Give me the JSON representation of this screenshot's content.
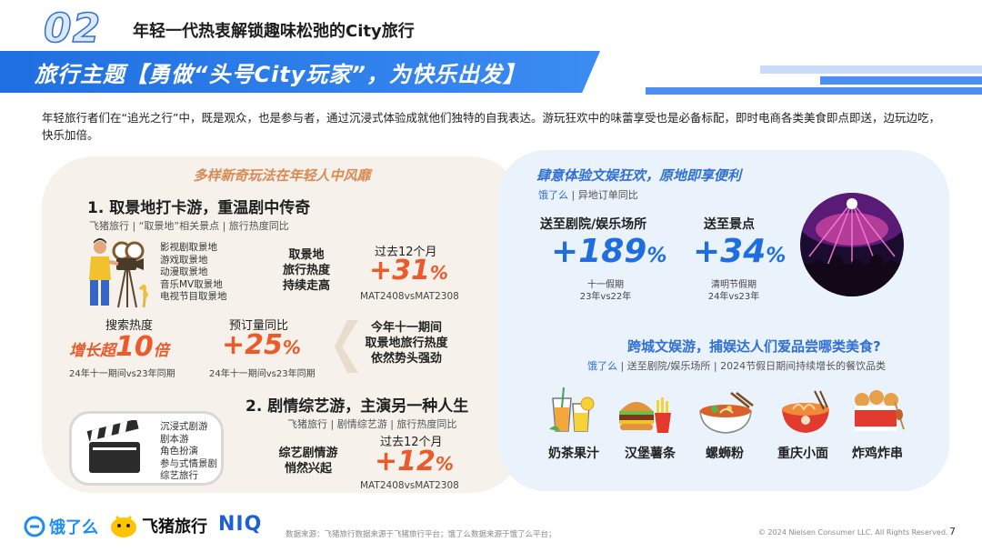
{
  "header": {
    "section_number": "02",
    "section_title": "年轻一代热衷解锁趣味松弛的City旅行",
    "banner": "旅行主题【勇做“头号City玩家”，为快乐出发】"
  },
  "intro": "年轻旅行者们在“追光之行”中，既是观众，也是参与者，通过沉浸式体验成就他们独特的自我表达。游玩狂欢中的味蕾享受也是必备标配，即时电商各类美食即点即送，边玩边吃，快乐加倍。",
  "left_panel": {
    "heading": "多样新奇玩法在年轻人中风靡",
    "s1": {
      "title": "1. 取景地打卡游，重温剧中传奇",
      "source": "飞猪旅行 | “取景地”相关景点 | 旅行热度同比",
      "categories": [
        "影视剧取景地",
        "游戏取景地",
        "动漫取景地",
        "音乐MV取景地",
        "电视节目取景地"
      ],
      "trend_label": [
        "取景地",
        "旅行热度",
        "持续走高"
      ],
      "period": "过去12个月",
      "value": "+31",
      "unit": "%",
      "compare": "MAT2408vsMAT2308",
      "search_label": "搜索热度",
      "search_prefix": "增长超",
      "search_value": "10",
      "search_suffix": "倍",
      "search_note": "24年十一期间vs23年同期",
      "booking_label": "预订量同比",
      "booking_value": "+25",
      "booking_unit": "%",
      "booking_note": "24年十一期间vs23年同期",
      "holiday_text": [
        "今年十一期间",
        "取景地旅行热度",
        "依然势头强劲"
      ]
    },
    "s2": {
      "title": "2. 剧情综艺游，主演另一种人生",
      "source": "飞猪旅行 | 剧情综艺游 | 旅行热度同比",
      "categories": [
        "沉浸式剧游",
        "剧本游",
        "角色扮演",
        "参与式情景剧",
        "综艺旅行"
      ],
      "trend_label": [
        "综艺剧情游",
        "悄然兴起"
      ],
      "period": "过去12个月",
      "value": "+12",
      "unit": "%",
      "compare": "MAT2408vsMAT2308"
    }
  },
  "right_panel": {
    "heading": "肆意体验文娱狂欢，原地即享便利",
    "source_brand": "饿了么",
    "source_rest": " | 异地订单同比",
    "stat1": {
      "label": "送至剧院/娱乐场所",
      "value": "+189",
      "unit": "%",
      "note1": "十一假期",
      "note2": "23年vs22年"
    },
    "stat2": {
      "label": "送至景点",
      "value": "+34",
      "unit": "%",
      "note1": "清明节假期",
      "note2": "24年vs23年"
    },
    "food_heading": "跨城文娱游，捕娱达人们爱品尝哪类美食?",
    "food_source_brand": "饿了么",
    "food_source_rest": " | 送至剧院/娱乐场所 | 2024节假日期间持续增长的餐饮品类",
    "foods": [
      "奶茶果汁",
      "汉堡薯条",
      "螺蛳粉",
      "重庆小面",
      "炸鸡炸串"
    ]
  },
  "footer": {
    "logo_eleme": "饿了么",
    "logo_fliggy": "飞猪旅行",
    "logo_niq": "NIQ",
    "source": "数据来源：飞猪旅行数据来源于飞猪旅行平台；饿了么数据来源于饿了么平台；",
    "copyright": "© 2024 Nielsen Consumer LLC. All Rights Reserved.",
    "page": "7"
  },
  "colors": {
    "blue": "#1e6ee0",
    "orange": "#ec5a2b",
    "panel_left": "#f6f1ea",
    "panel_right": "#eaf2fc"
  }
}
